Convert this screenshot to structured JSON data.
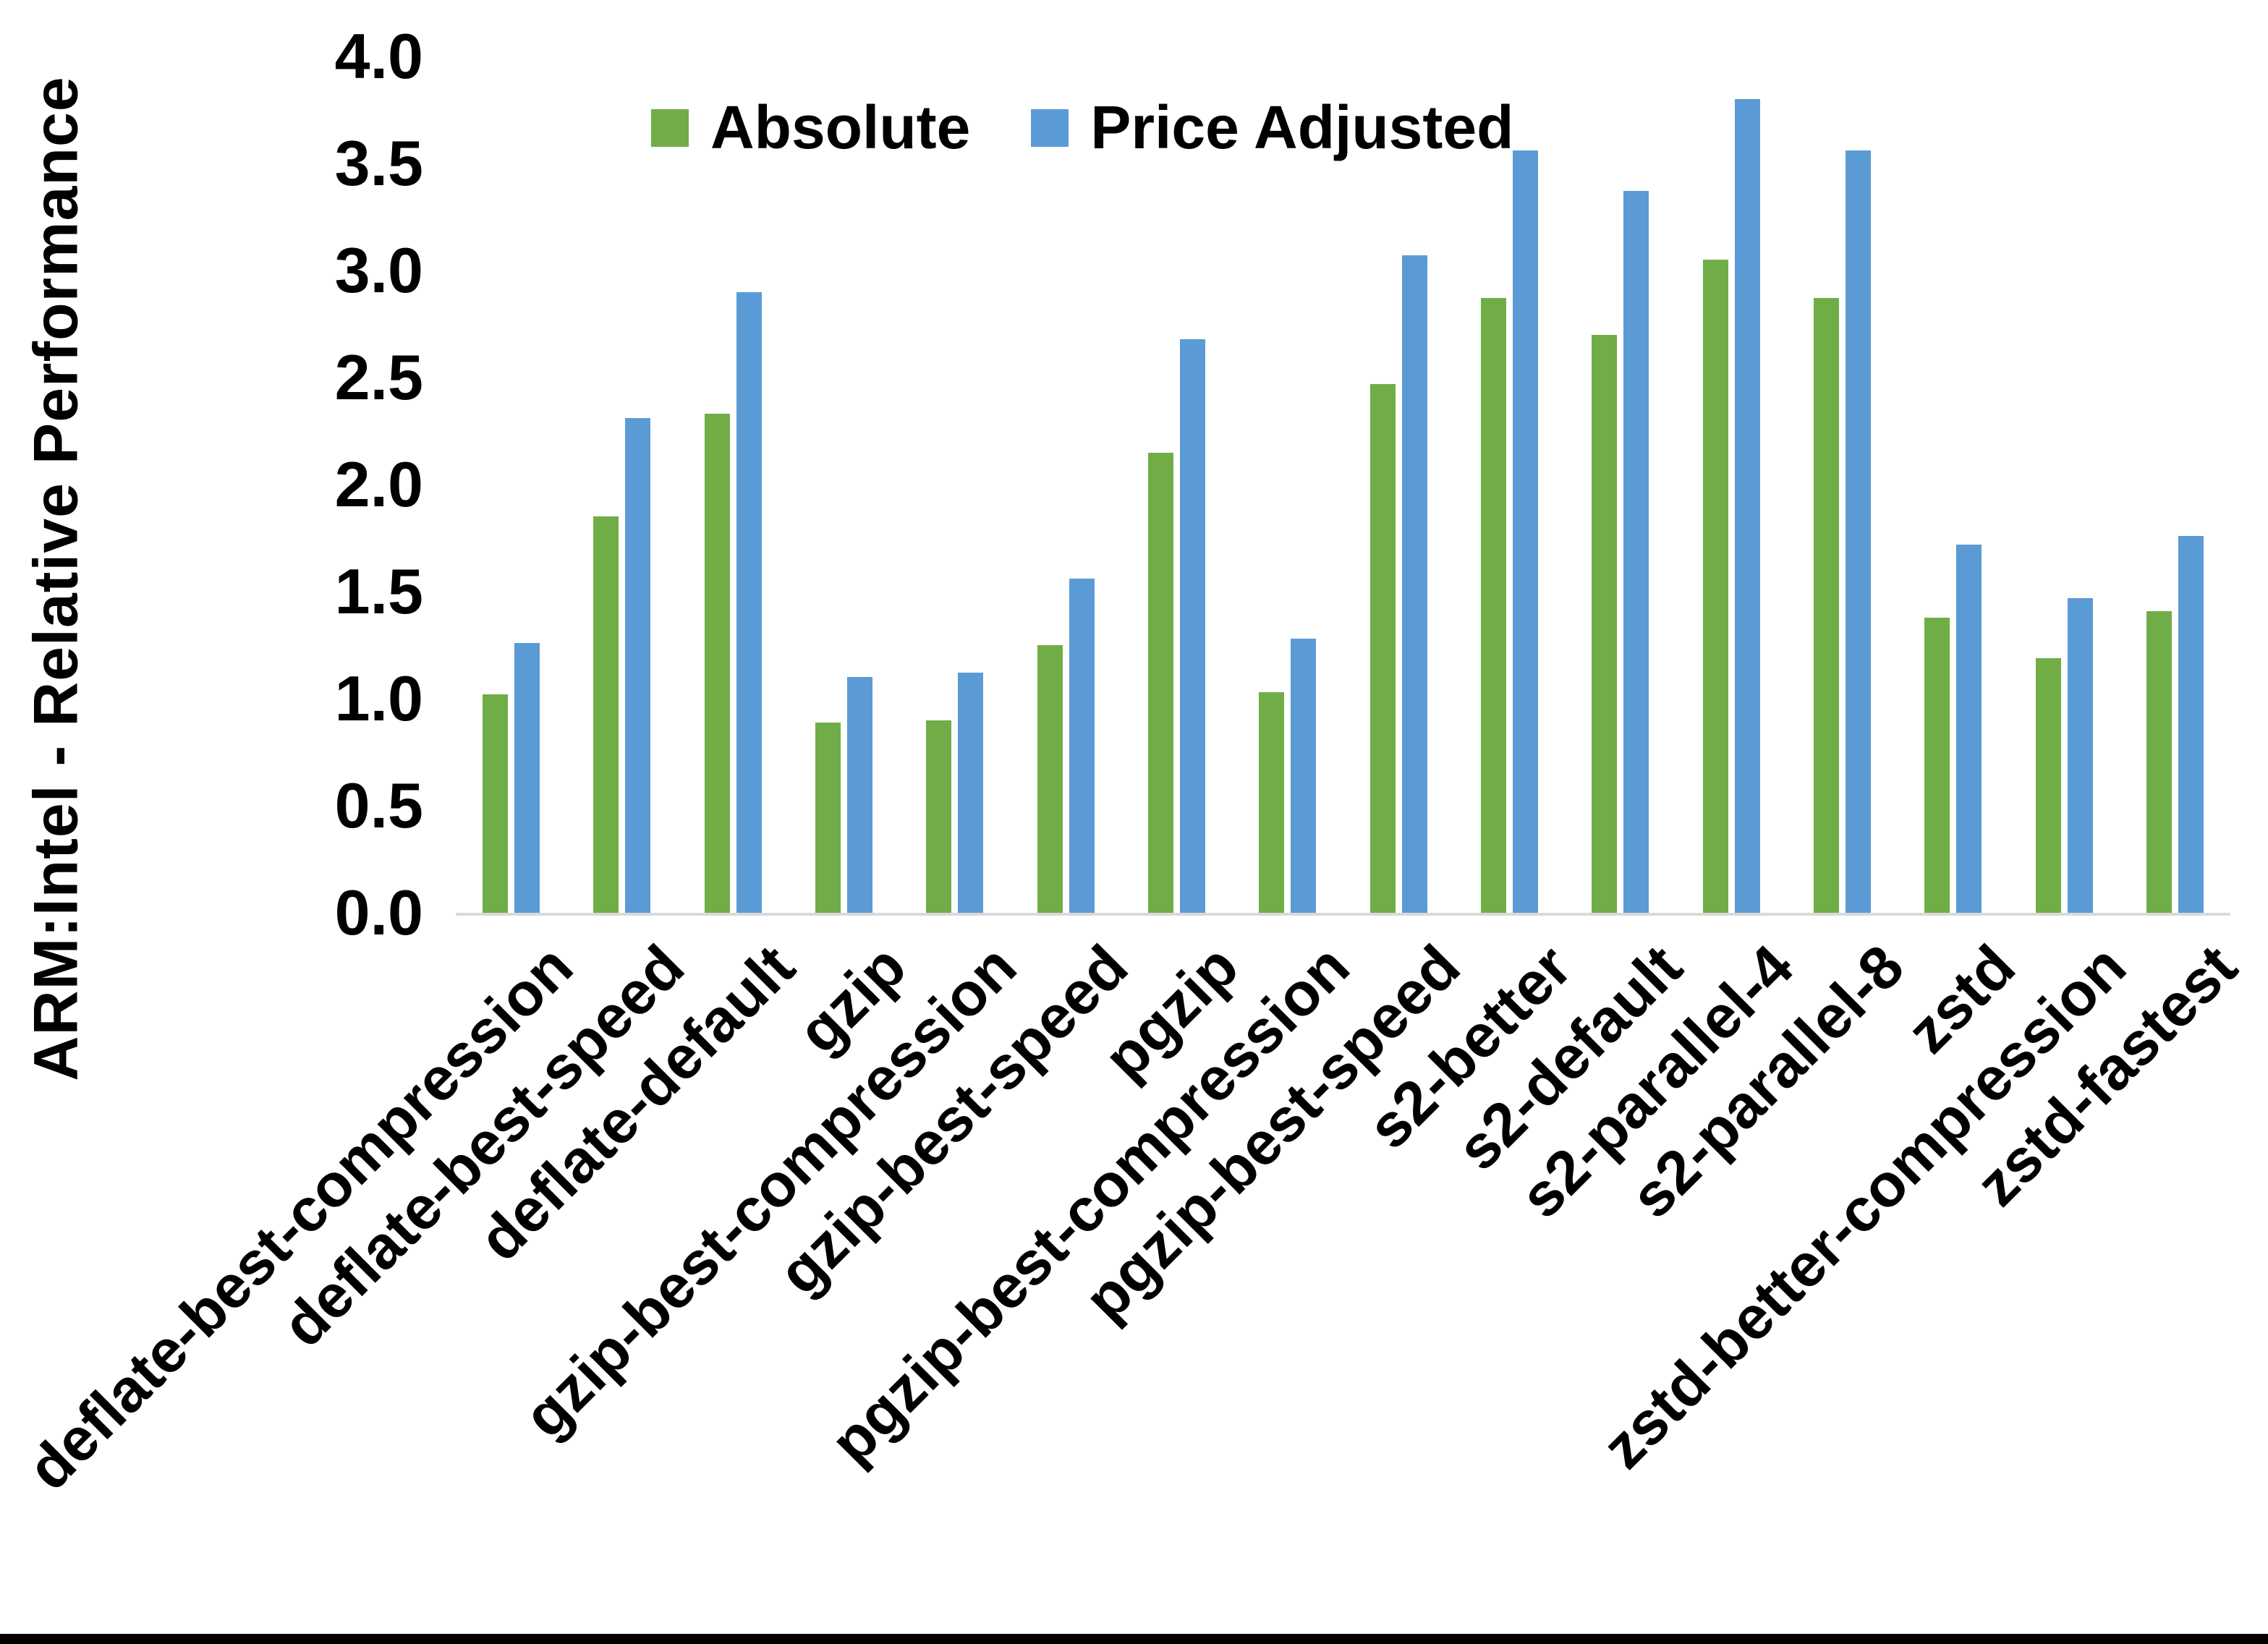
{
  "chart_data": {
    "type": "bar",
    "title": "",
    "xlabel": "",
    "ylabel": "ARM:Intel - Relative Performance",
    "ylim": [
      0,
      4
    ],
    "ytick_step": 0.5,
    "yticks": [
      "4.0",
      "3.5",
      "3.0",
      "2.5",
      "2.0",
      "1.5",
      "1.0",
      "0.5",
      "0.0"
    ],
    "grid": false,
    "legend_position": "top-center",
    "baseline_color": "#d9d9d9",
    "categories": [
      "deflate-best-compression",
      "deflate-best-speed",
      "deflate-default",
      "gzip",
      "gzip-best-compression",
      "gzip-best-speed",
      "pgzip",
      "pgzip-best-compression",
      "pgzip-best-speed",
      "s2-better",
      "s2-default",
      "s2-parallel-4",
      "s2-parallel-8",
      "zstd",
      "zstd-better-compression",
      "zstd-fastest"
    ],
    "series": [
      {
        "name": "Absolute",
        "color": "#70AD47",
        "values": [
          1.02,
          1.85,
          2.33,
          0.89,
          0.9,
          1.25,
          2.15,
          1.03,
          2.47,
          2.87,
          2.7,
          3.05,
          2.87,
          1.38,
          1.19,
          1.41
        ]
      },
      {
        "name": "Price Adjusted",
        "color": "#5B9BD5",
        "values": [
          1.26,
          2.31,
          2.9,
          1.1,
          1.12,
          1.56,
          2.68,
          1.28,
          3.07,
          3.56,
          3.37,
          3.8,
          3.56,
          1.72,
          1.47,
          1.76
        ]
      }
    ]
  }
}
